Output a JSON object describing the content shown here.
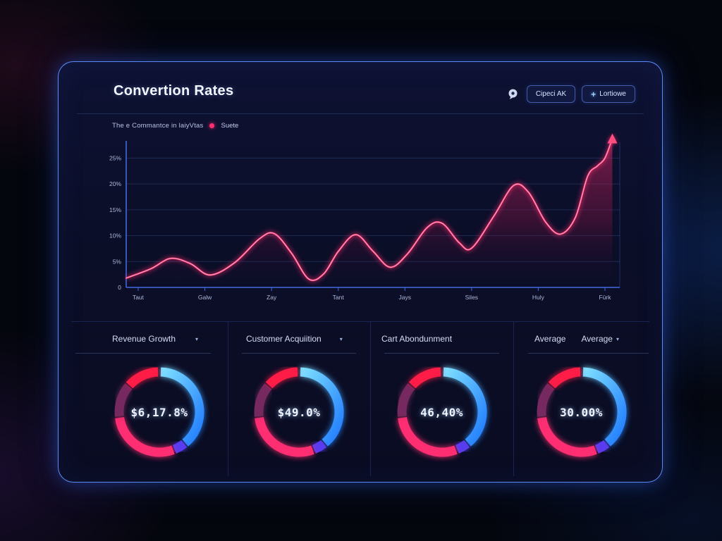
{
  "ui": {
    "caret_icon": "▾",
    "plus_icon": "+"
  },
  "header": {
    "title": "Convertion Rates",
    "buttons": [
      {
        "label": "Cipeci AK"
      },
      {
        "label": "Lortiowe"
      }
    ]
  },
  "chart": {
    "subtitle": "The e Commantce in laiyVtas",
    "legend": {
      "label": "Suete",
      "color": "#ff2e72"
    }
  },
  "cards": {
    "items": [
      {
        "label": "Revenue Growth",
        "value": "$6,17.8%",
        "has_caret": true
      },
      {
        "label": "Customer Acquiition",
        "value": "$49.0%",
        "has_caret": true
      },
      {
        "label": "Cart Abondunment",
        "value": "46,40%",
        "has_caret": false
      },
      {
        "label": "Average",
        "label2": "Average",
        "value": "30.00%",
        "has_caret": true
      }
    ]
  },
  "chart_data": [
    {
      "type": "area",
      "title": "Convertion Rates",
      "subtitle": "The e Commantce in laiyVtas",
      "legend_position": "top-left",
      "grid": true,
      "annotation": "rising-arrow-at-end",
      "ylim": [
        0,
        27.5
      ],
      "y_tick_values": [
        25,
        20,
        15,
        10,
        5,
        0
      ],
      "y_tick_labels": [
        "25%",
        "20%",
        "15%",
        "10%",
        "5%",
        "0"
      ],
      "x_tick_labels": [
        "Taut",
        "Galw",
        "Zay",
        "Tant",
        "Jays",
        "Siles",
        "Huly",
        "Fürk"
      ],
      "series": [
        {
          "name": "Suete",
          "color": "#ff3d77",
          "points": [
            [
              0.0,
              1.8
            ],
            [
              0.05,
              3.6
            ],
            [
              0.09,
              5.6
            ],
            [
              0.13,
              4.6
            ],
            [
              0.17,
              2.4
            ],
            [
              0.22,
              4.8
            ],
            [
              0.27,
              9.4
            ],
            [
              0.3,
              10.4
            ],
            [
              0.335,
              6.6
            ],
            [
              0.37,
              1.6
            ],
            [
              0.4,
              2.6
            ],
            [
              0.43,
              7.0
            ],
            [
              0.465,
              10.2
            ],
            [
              0.5,
              7.0
            ],
            [
              0.535,
              3.9
            ],
            [
              0.57,
              6.5
            ],
            [
              0.61,
              11.6
            ],
            [
              0.64,
              12.4
            ],
            [
              0.675,
              8.6
            ],
            [
              0.7,
              7.6
            ],
            [
              0.745,
              13.8
            ],
            [
              0.785,
              19.7
            ],
            [
              0.815,
              18.4
            ],
            [
              0.85,
              12.6
            ],
            [
              0.88,
              10.3
            ],
            [
              0.91,
              13.5
            ],
            [
              0.935,
              21.5
            ],
            [
              0.955,
              23.5
            ],
            [
              0.97,
              25.0
            ],
            [
              0.985,
              28.8
            ]
          ]
        }
      ]
    },
    {
      "type": "pie",
      "subtype": "donut-gauges",
      "gauges": [
        {
          "label": "Revenue Growth",
          "value_text": "$6,17.8%"
        },
        {
          "label": "Customer Acquiition",
          "value_text": "$49.0%"
        },
        {
          "label": "Cart Abondunment",
          "value_text": "46,40%"
        },
        {
          "label": "Average",
          "value_text": "30.00%"
        }
      ],
      "ring_segments": [
        {
          "name": "cyan",
          "color_start": "#7fe0ff",
          "color_end": "#1f7bff",
          "from_deg": 2,
          "to_deg": 140
        },
        {
          "name": "violet",
          "color": "#5a3cf0",
          "from_deg": 142,
          "to_deg": 158
        },
        {
          "name": "pink",
          "color": "#ff2e72",
          "from_deg": 160,
          "to_deg": 262
        },
        {
          "name": "plum",
          "color": "#76295f",
          "from_deg": 264,
          "to_deg": 310
        },
        {
          "name": "red",
          "color": "#ff1c47",
          "from_deg": 312,
          "to_deg": 358
        }
      ]
    }
  ],
  "colors": {
    "panel_border": "#4a79f0",
    "axis": "#3f6be0",
    "gridline": "#1c2a52",
    "tick_label": "#aeb9dd",
    "line": "#ff3d77",
    "area_top": "rgba(235,42,104,0.50)",
    "value_text": "#edf3ff"
  }
}
